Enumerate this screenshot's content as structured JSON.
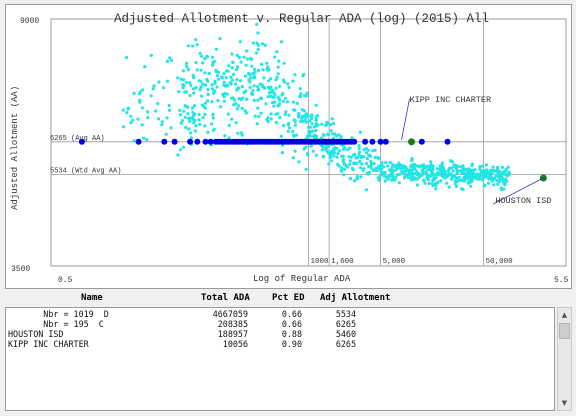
{
  "chart_data": {
    "type": "scatter",
    "title": "Adjusted Allotment v. Regular ADA (log) (2015)  All",
    "xlabel": "Log of Regular ADA",
    "ylabel": "Adjusted Allotment (AA)",
    "xlim": [
      0.5,
      5.5
    ],
    "ylim": [
      3500,
      9000
    ],
    "x_tick_labels": [
      "0.5",
      "5.5"
    ],
    "y_tick_labels": [
      "9000",
      "3500"
    ],
    "vertical_reference_lines": [
      {
        "x": 3.0,
        "label": "1000"
      },
      {
        "x": 3.2,
        "label": "1,600"
      },
      {
        "x": 3.7,
        "label": "5,000"
      },
      {
        "x": 4.7,
        "label": "50,000"
      }
    ],
    "horizontal_reference_lines": [
      {
        "y": 6265,
        "label": "6265 (Avg AA)"
      },
      {
        "y": 5534,
        "label": "5534 (Wtd Avg AA)"
      }
    ],
    "highlighted_points": [
      {
        "label": "KIPP INC CHARTER",
        "x": 4.0,
        "y": 6265
      },
      {
        "label": "HOUSTON ISD",
        "x": 5.28,
        "y": 5460
      }
    ],
    "colors": {
      "scatter": "#22e5e5",
      "charter_points": "#0000ee",
      "highlight": "#1a7a1a",
      "callout_line": "#3333cc",
      "grid": "#9a9a9a"
    }
  },
  "table": {
    "headers": {
      "name": "Name",
      "total_ada": "Total ADA",
      "pct_ed": "Pct ED",
      "adj_allotment": "Adj Allotment"
    },
    "rows": [
      {
        "name": "       Nbr = 1019  D",
        "total_ada": "4667059",
        "pct_ed": "0.66",
        "adj_allotment": "5534"
      },
      {
        "name": "       Nbr = 195  C",
        "total_ada": "208385",
        "pct_ed": "0.66",
        "adj_allotment": "6265"
      },
      {
        "name": "HOUSTON ISD",
        "total_ada": "188957",
        "pct_ed": "0.88",
        "adj_allotment": "5460"
      },
      {
        "name": "KIPP INC CHARTER",
        "total_ada": "10056",
        "pct_ed": "0.90",
        "adj_allotment": "6265"
      }
    ]
  },
  "icons": {
    "scroll_up": "scroll-up-arrow-icon",
    "scroll_down": "scroll-down-arrow-icon"
  }
}
